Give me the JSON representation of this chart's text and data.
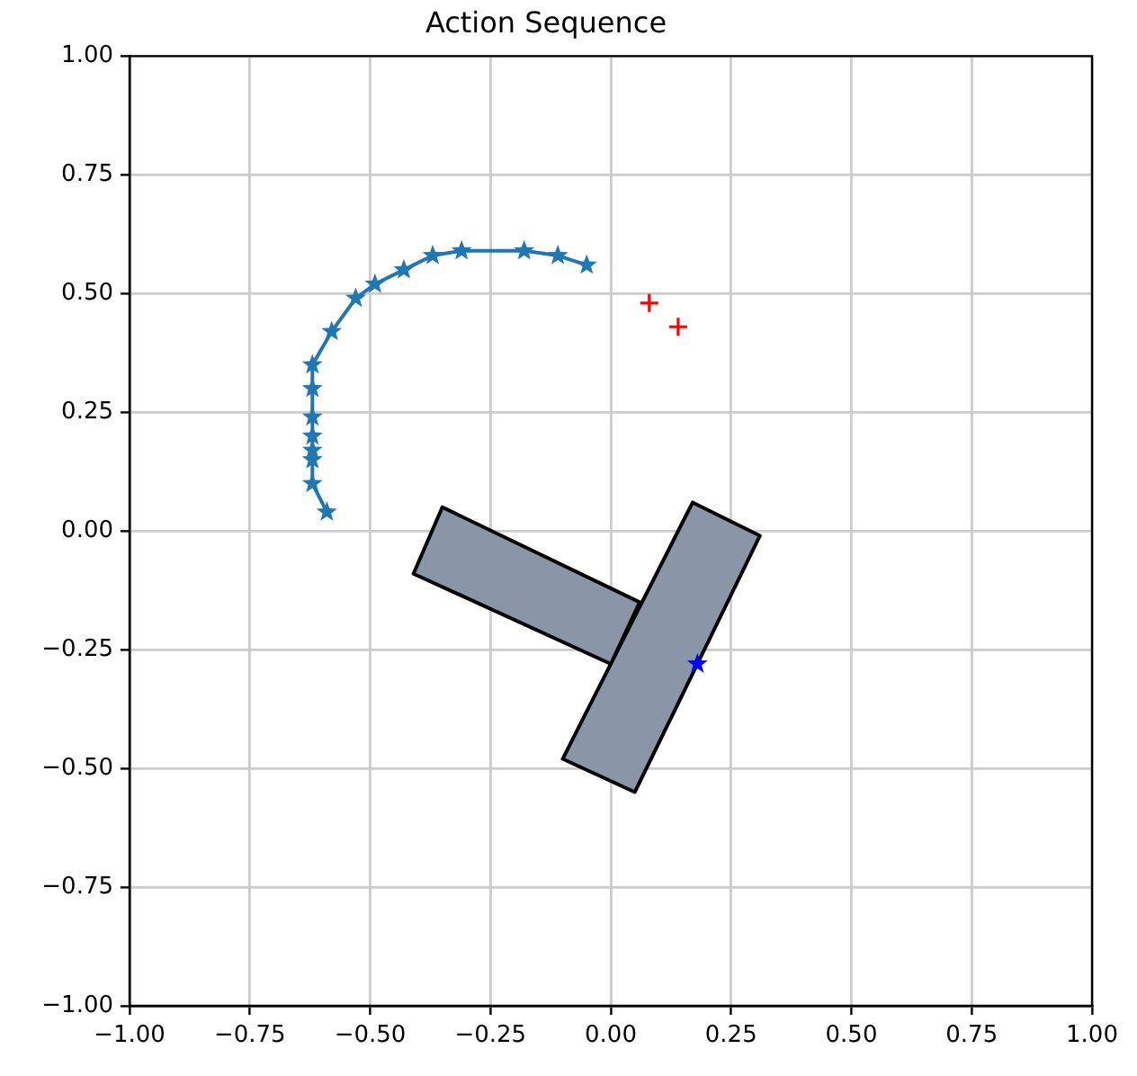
{
  "chart_data": {
    "type": "scatter",
    "title": "Action Sequence",
    "grid": true,
    "xlim": [
      -1,
      1
    ],
    "ylim": [
      -1,
      1
    ],
    "xticks": [
      {
        "value": -1,
        "label": "−1.00"
      },
      {
        "value": -0.75,
        "label": "−0.75"
      },
      {
        "value": -0.5,
        "label": "−0.50"
      },
      {
        "value": -0.25,
        "label": "−0.25"
      },
      {
        "value": 0,
        "label": "0.00"
      },
      {
        "value": 0.25,
        "label": "0.25"
      },
      {
        "value": 0.5,
        "label": "0.50"
      },
      {
        "value": 0.75,
        "label": "0.75"
      },
      {
        "value": 1,
        "label": "1.00"
      }
    ],
    "yticks": [
      {
        "value": -1,
        "label": "−1.00"
      },
      {
        "value": -0.75,
        "label": "−0.75"
      },
      {
        "value": -0.5,
        "label": "−0.50"
      },
      {
        "value": -0.25,
        "label": "−0.25"
      },
      {
        "value": 0,
        "label": "0.00"
      },
      {
        "value": 0.25,
        "label": "0.25"
      },
      {
        "value": 0.5,
        "label": "0.50"
      },
      {
        "value": 0.75,
        "label": "0.75"
      },
      {
        "value": 1,
        "label": "1.00"
      }
    ],
    "series": [
      {
        "type": "area",
        "color": "#8a96a8",
        "marker": "none",
        "x": [
          0.17,
          0.31,
          0.05,
          -0.1,
          0.17
        ],
        "values": [
          0.06,
          -0.01,
          -0.55,
          -0.48,
          0.06
        ]
      },
      {
        "type": "area",
        "color": "#8a96a8",
        "marker": "none",
        "x": [
          -0.35,
          0.06,
          0.0,
          -0.41,
          -0.35
        ],
        "values": [
          0.05,
          -0.15,
          -0.28,
          -0.09,
          0.05
        ]
      },
      {
        "type": "line",
        "color": "#1f77b4",
        "marker": "star",
        "x": [
          -0.59,
          -0.62,
          -0.62,
          -0.62,
          -0.62,
          -0.62,
          -0.62,
          -0.62,
          -0.58,
          -0.53,
          -0.49,
          -0.43,
          -0.37,
          -0.31,
          -0.18,
          -0.11,
          -0.05
        ],
        "values": [
          0.04,
          0.1,
          0.15,
          0.17,
          0.2,
          0.24,
          0.3,
          0.35,
          0.42,
          0.49,
          0.52,
          0.55,
          0.58,
          0.59,
          0.59,
          0.58,
          0.56
        ]
      },
      {
        "color": "#ff0000",
        "marker": "cross",
        "x": [
          0.08,
          0.14
        ],
        "values": [
          0.48,
          0.43
        ]
      },
      {
        "color": "#0000ff",
        "marker": "star",
        "x": [
          0.18
        ],
        "values": [
          -0.28
        ]
      }
    ]
  }
}
